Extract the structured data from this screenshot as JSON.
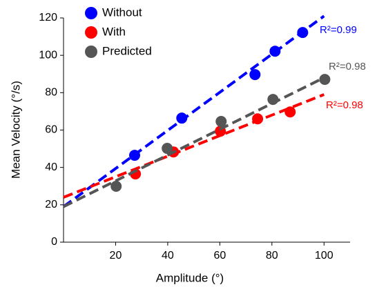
{
  "chart_data": {
    "type": "scatter",
    "xlabel": "Amplitude (°)",
    "ylabel": "Mean Velocity (°/s)",
    "xlim": [
      0,
      110
    ],
    "ylim": [
      0,
      120
    ],
    "xticks": [
      20,
      40,
      60,
      80,
      100
    ],
    "yticks": [
      0,
      20,
      40,
      60,
      80,
      100,
      120
    ],
    "legend": "upper left",
    "grid": false,
    "series": [
      {
        "name": "Without",
        "color": "#0000ff",
        "x": [
          27.3,
          45.4,
          73.5,
          81.2,
          91.8
        ],
        "values": [
          46.5,
          66.4,
          89.7,
          102.2,
          112.2
        ],
        "fit": {
          "x": [
            0,
            100
          ],
          "y": [
            19,
            121
          ]
        },
        "r2_label": "R²=0.99"
      },
      {
        "name": "With",
        "color": "#ff0000",
        "x": [
          27.6,
          42.2,
          60.2,
          74.5,
          87
        ],
        "values": [
          36.5,
          48.3,
          59.4,
          66,
          69.7
        ],
        "fit": {
          "x": [
            0,
            100
          ],
          "y": [
            24,
            79
          ]
        },
        "r2_label": "R²=0.98"
      },
      {
        "name": "Predicted",
        "color": "#555555",
        "x": [
          20.2,
          39.8,
          60.5,
          80.4,
          100.3
        ],
        "values": [
          29.9,
          50.2,
          64.6,
          76.4,
          87.1
        ],
        "fit": {
          "x": [
            0,
            100
          ],
          "y": [
            19,
            88
          ]
        },
        "r2_label": "R²=0.98"
      }
    ]
  }
}
